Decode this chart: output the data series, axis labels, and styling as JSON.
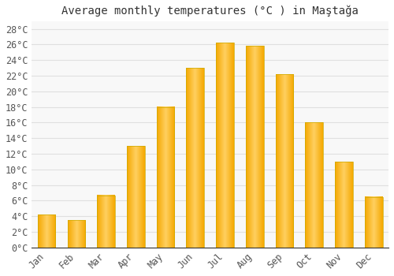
{
  "title": "Average monthly temperatures (°C ) in Maştağa",
  "months": [
    "Jan",
    "Feb",
    "Mar",
    "Apr",
    "May",
    "Jun",
    "Jul",
    "Aug",
    "Sep",
    "Oct",
    "Nov",
    "Dec"
  ],
  "values": [
    4.2,
    3.5,
    6.7,
    13.0,
    18.0,
    23.0,
    26.2,
    25.8,
    22.2,
    16.0,
    11.0,
    6.5
  ],
  "bar_color_left": "#F5A800",
  "bar_color_mid": "#FFD060",
  "bar_color_right": "#F5A800",
  "background_color": "#ffffff",
  "plot_bg_color": "#f8f8f8",
  "grid_color": "#e0e0e0",
  "text_color": "#555555",
  "ytick_labels": [
    "0°C",
    "2°C",
    "4°C",
    "6°C",
    "8°C",
    "10°C",
    "12°C",
    "14°C",
    "16°C",
    "18°C",
    "20°C",
    "22°C",
    "24°C",
    "26°C",
    "28°C"
  ],
  "ytick_values": [
    0,
    2,
    4,
    6,
    8,
    10,
    12,
    14,
    16,
    18,
    20,
    22,
    24,
    26,
    28
  ],
  "ylim": [
    0,
    29
  ],
  "title_fontsize": 10,
  "tick_fontsize": 8.5,
  "bar_width": 0.6
}
